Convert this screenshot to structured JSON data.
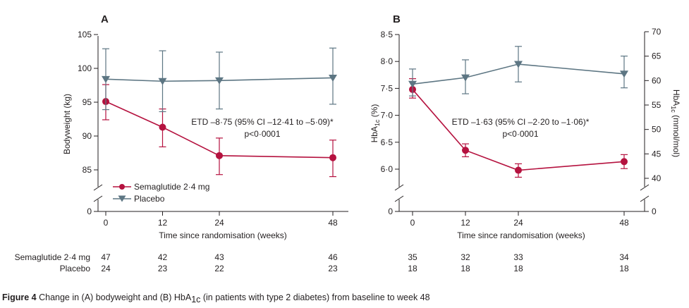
{
  "colors": {
    "semaglutide": "#b5123f",
    "placebo": "#5d7683",
    "axis": "#231f20"
  },
  "chart_data": [
    {
      "type": "line",
      "panel": "A",
      "xlabel": "Time since randomisation (weeks)",
      "ylabel": "Bodyweight (kg)",
      "x": [
        0,
        12,
        24,
        48
      ],
      "x_ticks": [
        "0",
        "12",
        "24",
        "48"
      ],
      "ylim": [
        83,
        105
      ],
      "y_ticks": [
        "85",
        "90",
        "95",
        "100",
        "105"
      ],
      "y_ticks_values": [
        85,
        90,
        95,
        100,
        105
      ],
      "y_break_label": "0",
      "series": [
        {
          "name": "Semaglutide 2·4 mg",
          "key": "semaglutide",
          "marker": "circle",
          "values": [
            95.1,
            91.3,
            87.1,
            86.8
          ],
          "lower": [
            92.4,
            88.4,
            84.3,
            84.0
          ],
          "upper": [
            97.6,
            94.0,
            89.7,
            89.4
          ]
        },
        {
          "name": "Placebo",
          "key": "placebo",
          "marker": "triangle-down",
          "values": [
            98.4,
            98.1,
            98.2,
            98.6
          ],
          "lower": [
            93.9,
            93.6,
            94.0,
            94.7
          ],
          "upper": [
            102.9,
            102.6,
            102.4,
            103.0
          ]
        }
      ],
      "annotation": [
        "ETD –8·75 (95% CI –12·41 to –5·09)*",
        "p<0·0001"
      ],
      "legend": "bottom-left",
      "grid": false
    },
    {
      "type": "line",
      "panel": "B",
      "xlabel": "Time since randomisation (weeks)",
      "ylabel_main": "HbA",
      "ylabel_sub": "1c",
      "ylabel_unit": " (%)",
      "ylabel_right_main": "HbA",
      "ylabel_right_sub": "1c",
      "ylabel_right_unit": " (mmol/mol)",
      "x": [
        0,
        12,
        24,
        48
      ],
      "x_ticks": [
        "0",
        "12",
        "24",
        "48"
      ],
      "ylim": [
        5.6,
        8.5
      ],
      "y_ticks": [
        "6·0",
        "6·5",
        "7·0",
        "7·5",
        "8·0",
        "8·5"
      ],
      "y_ticks_values": [
        6.0,
        6.5,
        7.0,
        7.5,
        8.0,
        8.5
      ],
      "y_break_label": "0",
      "y2_ticks": [
        "40",
        "45",
        "50",
        "55",
        "60",
        "65",
        "70"
      ],
      "y2_ticks_values": [
        40,
        45,
        50,
        55,
        60,
        65,
        70
      ],
      "y2_break_label": "0",
      "series": [
        {
          "name": "Semaglutide 2·4 mg",
          "key": "semaglutide",
          "marker": "circle",
          "values": [
            7.48,
            6.35,
            5.98,
            6.14
          ],
          "lower": [
            7.32,
            6.23,
            5.85,
            6.01
          ],
          "upper": [
            7.68,
            6.47,
            6.1,
            6.27
          ]
        },
        {
          "name": "Placebo",
          "key": "placebo",
          "marker": "triangle-down",
          "values": [
            7.58,
            7.7,
            7.95,
            7.77
          ],
          "lower": [
            7.36,
            7.4,
            7.62,
            7.51
          ],
          "upper": [
            7.86,
            8.03,
            8.28,
            8.1
          ]
        }
      ],
      "annotation": [
        "ETD –1·63 (95% CI –2·20 to –1·06)*",
        "p<0·0001"
      ],
      "grid": false
    }
  ],
  "numbers_at_risk": {
    "rows": [
      {
        "label": "Semaglutide 2·4 mg",
        "a": [
          "47",
          "42",
          "43",
          "46"
        ],
        "b": [
          "35",
          "32",
          "33",
          "34"
        ]
      },
      {
        "label": "Placebo",
        "a": [
          "24",
          "23",
          "22",
          "23"
        ],
        "b": [
          "18",
          "18",
          "18",
          "18"
        ]
      }
    ]
  },
  "caption": {
    "bold": "Figure 4",
    "text1": " Change in (A) bodyweight and (B) HbA",
    "sub": "1c",
    "text2": " (in patients with type 2 diabetes) from baseline to week 48"
  }
}
